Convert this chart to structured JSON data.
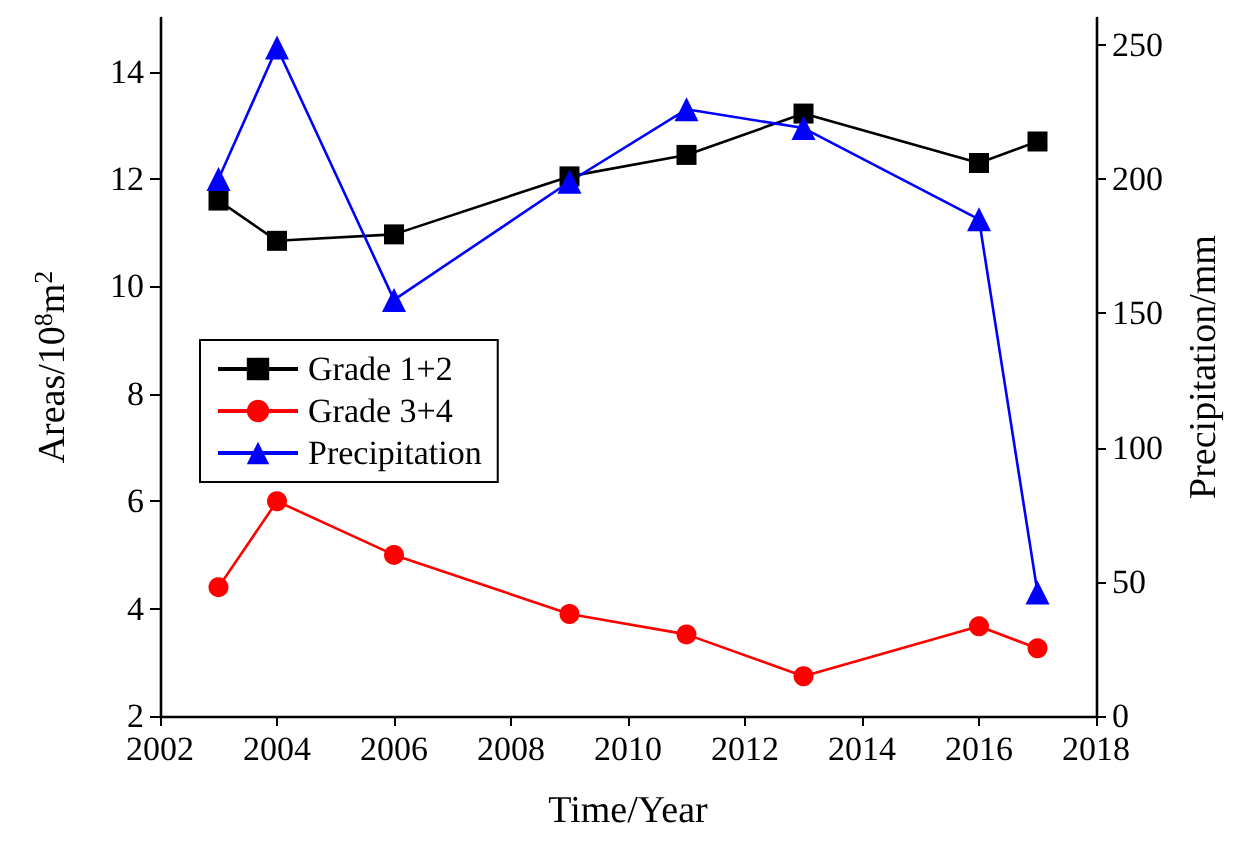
{
  "chart_data": {
    "type": "line",
    "xlabel": "Time/Year",
    "ylabel": "Areas/10$^{8}$m$^{2}$",
    "y2label": "Precipitation/mm",
    "x": [
      2003,
      2004,
      2006,
      2009,
      2011,
      2013,
      2016,
      2017
    ],
    "series": [
      {
        "name": "Grade 1+2",
        "color": "#000000",
        "marker": "square",
        "values": [
          11.6,
          10.85,
          10.97,
          12.05,
          12.45,
          13.22,
          12.3,
          12.7
        ]
      },
      {
        "name": "Grade 3+4",
        "color": "#ff0000",
        "marker": "circle",
        "values": [
          4.4,
          6.0,
          5.0,
          3.9,
          3.52,
          2.74,
          3.67,
          3.26
        ]
      },
      {
        "name": "Precipitation",
        "color": "#0000ff",
        "marker": "triangle",
        "axis": "y2",
        "values": [
          200,
          249,
          155,
          199,
          226,
          219,
          185,
          46
        ]
      }
    ],
    "xlim": [
      2002,
      2018
    ],
    "xticks": [
      2002,
      2004,
      2006,
      2008,
      2010,
      2012,
      2014,
      2016,
      2018
    ],
    "ylim": [
      2,
      15
    ],
    "yticks": [
      2,
      4,
      6,
      8,
      10,
      12,
      14
    ],
    "y2lim": [
      0,
      260
    ],
    "y2ticks": [
      0,
      50,
      100,
      150,
      200,
      250
    ],
    "legend": "left",
    "grid": false,
    "line_style": "solid"
  }
}
